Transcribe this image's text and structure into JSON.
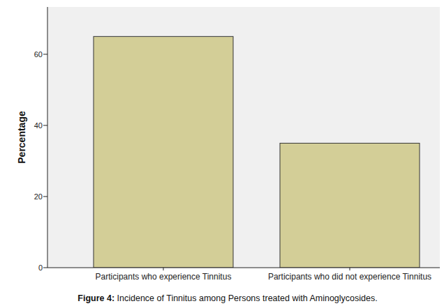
{
  "chart_data": {
    "type": "bar",
    "title": "Figure 4: Incidence of Tinnitus among Persons treated with Aminoglycosides.",
    "y_label": "Percentage",
    "categories": [
      "Participants who experience Tinnitus",
      "Participants who did not experience Tinnitus"
    ],
    "values": [
      65,
      35
    ],
    "color": "#d3ce97",
    "ylim": [
      0,
      73.3
    ],
    "yticks": [
      0,
      20,
      40,
      60
    ],
    "grid": false
  }
}
